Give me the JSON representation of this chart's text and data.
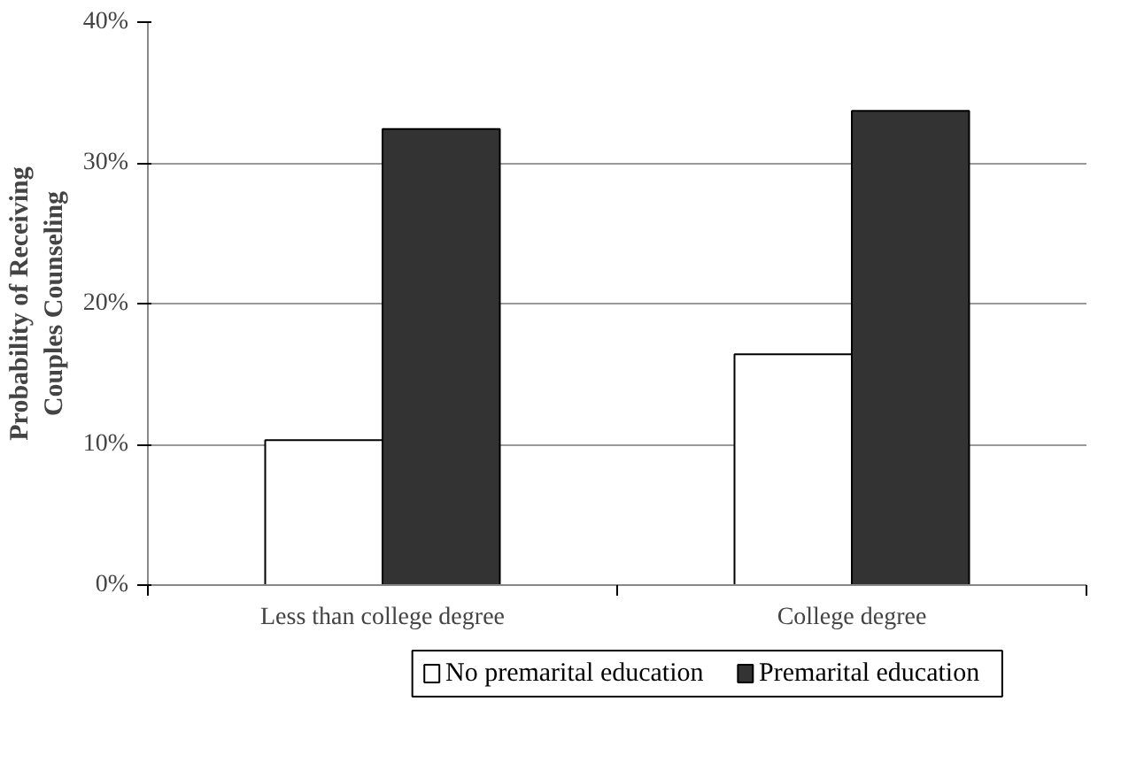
{
  "chart_data": {
    "type": "bar",
    "ylabel": "Probability of Receiving Couples Counseling",
    "categories": [
      "Less than college degree",
      "College degree"
    ],
    "series": [
      {
        "name": "No premarital education",
        "color": "#ffffff",
        "values": [
          10.3,
          16.4
        ]
      },
      {
        "name": "Premarital education",
        "color": "#333333",
        "values": [
          32.4,
          33.7
        ]
      }
    ],
    "ylim": [
      0,
      40
    ],
    "yticks": [
      {
        "value": 0,
        "label": "0%"
      },
      {
        "value": 10,
        "label": "10%"
      },
      {
        "value": 20,
        "label": "20%"
      },
      {
        "value": 30,
        "label": "30%"
      },
      {
        "value": 40,
        "label": "40%"
      }
    ],
    "grid": "y",
    "legend": "bottom"
  }
}
